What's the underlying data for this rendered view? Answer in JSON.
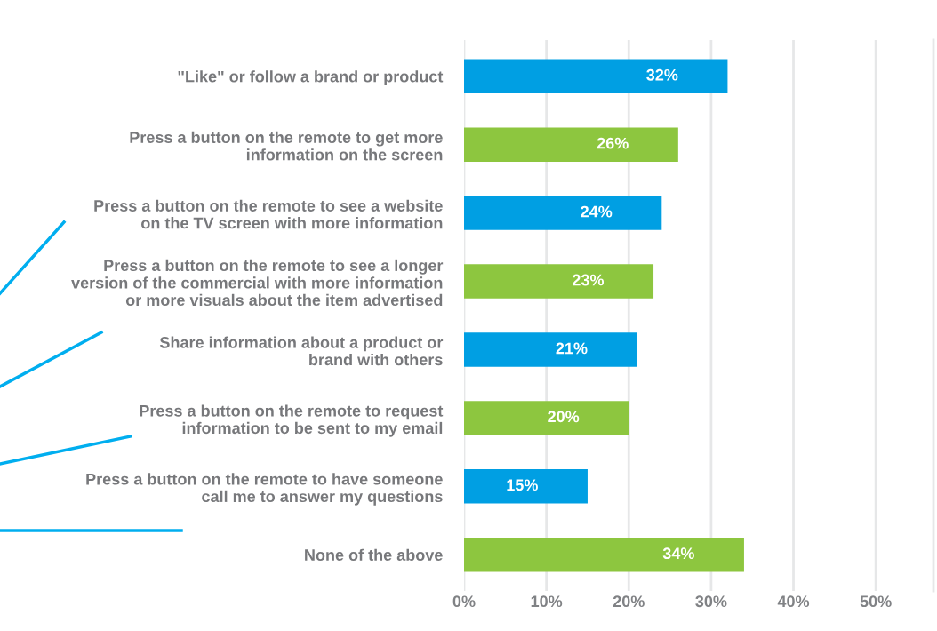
{
  "chart_data": {
    "type": "bar",
    "orientation": "horizontal",
    "categories": [
      "\"Like\" or follow a brand or product",
      "Press a button on the remote to get more\ninformation on the screen",
      "Press a button on the remote to see a website\non the TV screen with more information",
      "Press a button on the remote to see a longer\nversion of the commercial with more information\nor more visuals about the item advertised",
      "Share information about a product or\nbrand with others",
      "Press a button on the remote to request\ninformation to be sent to my email",
      "Press a button on the remote to have someone\ncall me to answer my questions",
      "None of the above"
    ],
    "values": [
      32,
      26,
      24,
      23,
      21,
      20,
      15,
      34
    ],
    "colors": [
      "#009fe3",
      "#8dc63f",
      "#009fe3",
      "#8dc63f",
      "#009fe3",
      "#8dc63f",
      "#009fe3",
      "#8dc63f"
    ],
    "value_labels": [
      "32%",
      "26%",
      "24%",
      "23%",
      "21%",
      "20%",
      "15%",
      "34%"
    ],
    "xlim": [
      0,
      57
    ],
    "xticks": [
      {
        "value": 0,
        "label": "0%"
      },
      {
        "value": 10,
        "label": "10%"
      },
      {
        "value": 20,
        "label": "20%"
      },
      {
        "value": 30,
        "label": "30%"
      },
      {
        "value": 40,
        "label": "40%"
      },
      {
        "value": 50,
        "label": "50%"
      }
    ],
    "grid": "x",
    "legend": false
  }
}
